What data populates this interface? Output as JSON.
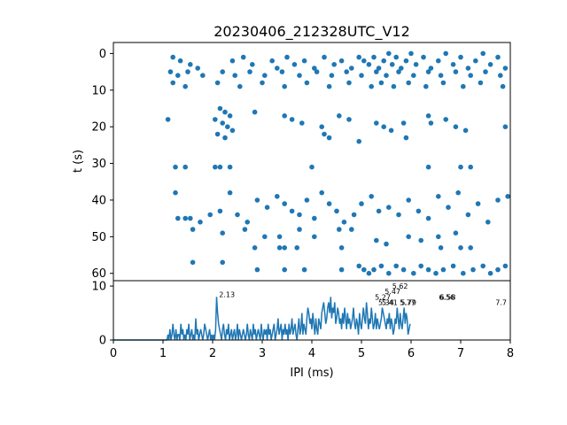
{
  "chart_data": [
    {
      "type": "scatter",
      "title": "20230406_212328UTC_V12",
      "xlabel": "",
      "ylabel": "t (s)",
      "xlim": [
        0,
        8
      ],
      "ylim": [
        62,
        -3
      ],
      "y_inverted": true,
      "yticks": [
        0,
        10,
        20,
        30,
        40,
        50,
        60
      ],
      "marker_color": "#1f77b4",
      "points": [
        [
          1.2,
          1
        ],
        [
          1.35,
          2
        ],
        [
          1.55,
          3
        ],
        [
          1.7,
          4
        ],
        [
          2.4,
          2
        ],
        [
          2.62,
          1
        ],
        [
          2.8,
          3
        ],
        [
          3.2,
          2
        ],
        [
          3.3,
          4
        ],
        [
          3.5,
          1
        ],
        [
          3.65,
          3
        ],
        [
          3.85,
          2
        ],
        [
          4.05,
          4
        ],
        [
          4.25,
          1
        ],
        [
          4.45,
          3
        ],
        [
          4.6,
          2
        ],
        [
          4.8,
          4
        ],
        [
          4.95,
          1
        ],
        [
          5.05,
          2
        ],
        [
          5.15,
          3
        ],
        [
          5.25,
          1
        ],
        [
          5.35,
          4
        ],
        [
          5.45,
          2
        ],
        [
          5.55,
          0
        ],
        [
          5.62,
          3
        ],
        [
          5.7,
          1
        ],
        [
          5.8,
          4
        ],
        [
          5.9,
          2
        ],
        [
          6.0,
          0
        ],
        [
          6.1,
          3
        ],
        [
          6.25,
          1
        ],
        [
          6.4,
          4
        ],
        [
          6.55,
          2
        ],
        [
          6.7,
          0
        ],
        [
          6.85,
          3
        ],
        [
          7.0,
          1
        ],
        [
          7.15,
          4
        ],
        [
          7.3,
          2
        ],
        [
          7.45,
          0
        ],
        [
          7.6,
          3
        ],
        [
          7.75,
          1
        ],
        [
          7.9,
          4
        ],
        [
          1.15,
          5
        ],
        [
          1.3,
          6
        ],
        [
          1.5,
          5
        ],
        [
          1.8,
          6
        ],
        [
          2.2,
          5
        ],
        [
          2.45,
          6
        ],
        [
          2.75,
          5
        ],
        [
          3.05,
          6
        ],
        [
          3.4,
          5
        ],
        [
          3.75,
          6
        ],
        [
          4.1,
          5
        ],
        [
          4.4,
          6
        ],
        [
          4.7,
          5
        ],
        [
          5.0,
          6
        ],
        [
          5.3,
          5
        ],
        [
          5.5,
          6
        ],
        [
          5.75,
          5
        ],
        [
          6.05,
          6
        ],
        [
          6.35,
          5
        ],
        [
          6.6,
          6
        ],
        [
          6.9,
          5
        ],
        [
          7.2,
          6
        ],
        [
          7.5,
          5
        ],
        [
          7.8,
          6
        ],
        [
          1.2,
          8
        ],
        [
          1.45,
          9
        ],
        [
          2.1,
          8
        ],
        [
          2.55,
          9
        ],
        [
          3.0,
          8
        ],
        [
          3.45,
          9
        ],
        [
          3.9,
          8
        ],
        [
          4.35,
          9
        ],
        [
          4.75,
          8
        ],
        [
          5.2,
          9
        ],
        [
          5.4,
          8
        ],
        [
          5.65,
          9
        ],
        [
          5.95,
          8
        ],
        [
          6.3,
          9
        ],
        [
          6.65,
          8
        ],
        [
          7.05,
          9
        ],
        [
          7.4,
          8
        ],
        [
          7.85,
          9
        ],
        [
          1.1,
          18
        ],
        [
          2.15,
          15
        ],
        [
          2.25,
          16
        ],
        [
          2.35,
          17
        ],
        [
          2.05,
          18
        ],
        [
          2.2,
          19
        ],
        [
          2.3,
          20
        ],
        [
          2.4,
          21
        ],
        [
          2.1,
          22
        ],
        [
          2.25,
          23
        ],
        [
          2.85,
          16
        ],
        [
          3.45,
          17
        ],
        [
          3.6,
          18
        ],
        [
          3.8,
          19
        ],
        [
          4.2,
          20
        ],
        [
          4.25,
          22
        ],
        [
          4.35,
          23
        ],
        [
          4.55,
          17
        ],
        [
          4.75,
          18
        ],
        [
          4.95,
          24
        ],
        [
          5.3,
          19
        ],
        [
          5.45,
          20
        ],
        [
          5.6,
          21
        ],
        [
          5.85,
          19
        ],
        [
          5.9,
          23
        ],
        [
          6.35,
          17
        ],
        [
          6.4,
          19
        ],
        [
          6.7,
          18
        ],
        [
          6.9,
          20
        ],
        [
          7.1,
          21
        ],
        [
          7.9,
          20
        ],
        [
          1.25,
          31
        ],
        [
          1.45,
          31
        ],
        [
          2.05,
          31
        ],
        [
          2.15,
          31
        ],
        [
          2.35,
          31
        ],
        [
          4.0,
          31
        ],
        [
          6.35,
          31
        ],
        [
          7.0,
          31
        ],
        [
          7.2,
          31
        ],
        [
          1.25,
          38
        ],
        [
          1.45,
          45
        ],
        [
          1.3,
          45
        ],
        [
          1.55,
          45
        ],
        [
          1.75,
          46
        ],
        [
          1.95,
          44
        ],
        [
          2.15,
          43
        ],
        [
          2.35,
          38
        ],
        [
          2.5,
          44
        ],
        [
          2.7,
          46
        ],
        [
          2.9,
          40
        ],
        [
          3.1,
          42
        ],
        [
          3.3,
          39
        ],
        [
          3.45,
          41
        ],
        [
          3.6,
          43
        ],
        [
          3.75,
          44
        ],
        [
          3.9,
          40
        ],
        [
          4.05,
          45
        ],
        [
          4.2,
          38
        ],
        [
          4.35,
          41
        ],
        [
          4.5,
          43
        ],
        [
          4.65,
          46
        ],
        [
          4.85,
          44
        ],
        [
          5.0,
          41
        ],
        [
          5.2,
          39
        ],
        [
          5.35,
          43
        ],
        [
          5.55,
          42
        ],
        [
          5.75,
          44
        ],
        [
          5.95,
          40
        ],
        [
          6.15,
          43
        ],
        [
          6.35,
          45
        ],
        [
          6.55,
          39
        ],
        [
          6.75,
          42
        ],
        [
          6.95,
          38
        ],
        [
          7.15,
          44
        ],
        [
          7.35,
          41
        ],
        [
          7.55,
          46
        ],
        [
          7.75,
          40
        ],
        [
          7.95,
          39
        ],
        [
          1.6,
          48
        ],
        [
          2.2,
          49
        ],
        [
          2.65,
          48
        ],
        [
          3.05,
          50
        ],
        [
          3.35,
          50
        ],
        [
          3.75,
          48
        ],
        [
          4.05,
          50
        ],
        [
          4.55,
          48
        ],
        [
          4.8,
          48
        ],
        [
          5.3,
          51
        ],
        [
          5.5,
          52
        ],
        [
          5.95,
          50
        ],
        [
          6.2,
          51
        ],
        [
          6.55,
          50
        ],
        [
          6.9,
          49
        ],
        [
          2.85,
          53
        ],
        [
          3.35,
          53
        ],
        [
          3.45,
          53
        ],
        [
          3.7,
          53
        ],
        [
          4.6,
          53
        ],
        [
          6.6,
          53
        ],
        [
          7.0,
          53
        ],
        [
          7.2,
          53
        ],
        [
          1.6,
          57
        ],
        [
          2.2,
          57
        ],
        [
          2.9,
          59
        ],
        [
          3.45,
          59
        ],
        [
          3.85,
          59
        ],
        [
          4.6,
          59
        ],
        [
          4.95,
          58
        ],
        [
          5.05,
          59
        ],
        [
          5.15,
          60
        ],
        [
          5.25,
          59
        ],
        [
          5.4,
          58
        ],
        [
          5.55,
          60
        ],
        [
          5.7,
          58
        ],
        [
          5.85,
          59
        ],
        [
          6.05,
          60
        ],
        [
          6.2,
          58
        ],
        [
          6.35,
          59
        ],
        [
          6.5,
          60
        ],
        [
          6.65,
          59
        ],
        [
          6.85,
          58
        ],
        [
          7.05,
          60
        ],
        [
          7.25,
          59
        ],
        [
          7.45,
          58
        ],
        [
          7.6,
          60
        ],
        [
          7.75,
          59
        ],
        [
          7.9,
          58
        ]
      ]
    },
    {
      "type": "line",
      "xlabel": "IPI (ms)",
      "ylabel": "",
      "xlim": [
        0,
        8
      ],
      "ylim": [
        0,
        11
      ],
      "xticks": [
        0,
        1,
        2,
        3,
        4,
        5,
        6,
        7,
        8
      ],
      "yticks": [
        0,
        10
      ],
      "line_color": "#1f77b4",
      "x_start": 1.0,
      "x_step": 0.02,
      "values": [
        0,
        0,
        0,
        0,
        0,
        1,
        0,
        2,
        0,
        1,
        3,
        1,
        0,
        2,
        0,
        1,
        1,
        0,
        3,
        1,
        2,
        0,
        1,
        0,
        2,
        1,
        3,
        0,
        1,
        2,
        0,
        1,
        0,
        4,
        1,
        2,
        0,
        1,
        2,
        1,
        0,
        1,
        3,
        2,
        1,
        0,
        1,
        2,
        0,
        1,
        0,
        1,
        0,
        2,
        8,
        5,
        3,
        2,
        1,
        0,
        2,
        3,
        1,
        0,
        2,
        1,
        3,
        0,
        1,
        2,
        0,
        1,
        2,
        0,
        1,
        3,
        0,
        2,
        1,
        0,
        1,
        2,
        1,
        0,
        1,
        3,
        1,
        0,
        2,
        1,
        0,
        3,
        1,
        2,
        0,
        1,
        2,
        1,
        0,
        3,
        1,
        0,
        2,
        1,
        2,
        0,
        3,
        1,
        2,
        0,
        1,
        2,
        3,
        0,
        1,
        2,
        4,
        1,
        2,
        3,
        0,
        2,
        1,
        3,
        1,
        2,
        0,
        3,
        1,
        2,
        4,
        1,
        2,
        3,
        1,
        0,
        2,
        4,
        1,
        2,
        5,
        1,
        3,
        2,
        1,
        4,
        6,
        5,
        3,
        4,
        2,
        5,
        3,
        1,
        4,
        2,
        1,
        4,
        3,
        2,
        5,
        6,
        7,
        5,
        3,
        4,
        6,
        7,
        5,
        8,
        4,
        6,
        5,
        7,
        3,
        4,
        6,
        5,
        3,
        4,
        2,
        5,
        3,
        6,
        4,
        2,
        5,
        3,
        4,
        2,
        3,
        4,
        6,
        3,
        2,
        4,
        3,
        1,
        5,
        3,
        2,
        4,
        6,
        4,
        3,
        7,
        5,
        2,
        4,
        3,
        6,
        4,
        2,
        3,
        5,
        2,
        4,
        3,
        2,
        3,
        4,
        6,
        5,
        4,
        3,
        2,
        4,
        3,
        5,
        2,
        4,
        3,
        1,
        2,
        4,
        3,
        6,
        4,
        2,
        5,
        3,
        2,
        4,
        6,
        3,
        5,
        4,
        1,
        2,
        3
      ],
      "annotations": [
        {
          "x": 2.13,
          "y": 8,
          "label": "2.13"
        },
        {
          "x": 5.62,
          "y": 9.5,
          "label": "5.62"
        },
        {
          "x": 5.47,
          "y": 8.5,
          "label": "5.47"
        },
        {
          "x": 5.27,
          "y": 7.5,
          "label": "5.27"
        },
        {
          "x": 5.34,
          "y": 6.5,
          "label": "5.34"
        },
        {
          "x": 5.41,
          "y": 6.5,
          "label": "5.41"
        },
        {
          "x": 5.77,
          "y": 6.5,
          "label": "5.77"
        },
        {
          "x": 5.79,
          "y": 6.5,
          "label": "5.79"
        },
        {
          "x": 6.56,
          "y": 7.5,
          "label": "6.56"
        },
        {
          "x": 6.58,
          "y": 7.5,
          "label": "6.58"
        },
        {
          "x": 7.7,
          "y": 6.5,
          "label": "7.7"
        }
      ]
    }
  ]
}
